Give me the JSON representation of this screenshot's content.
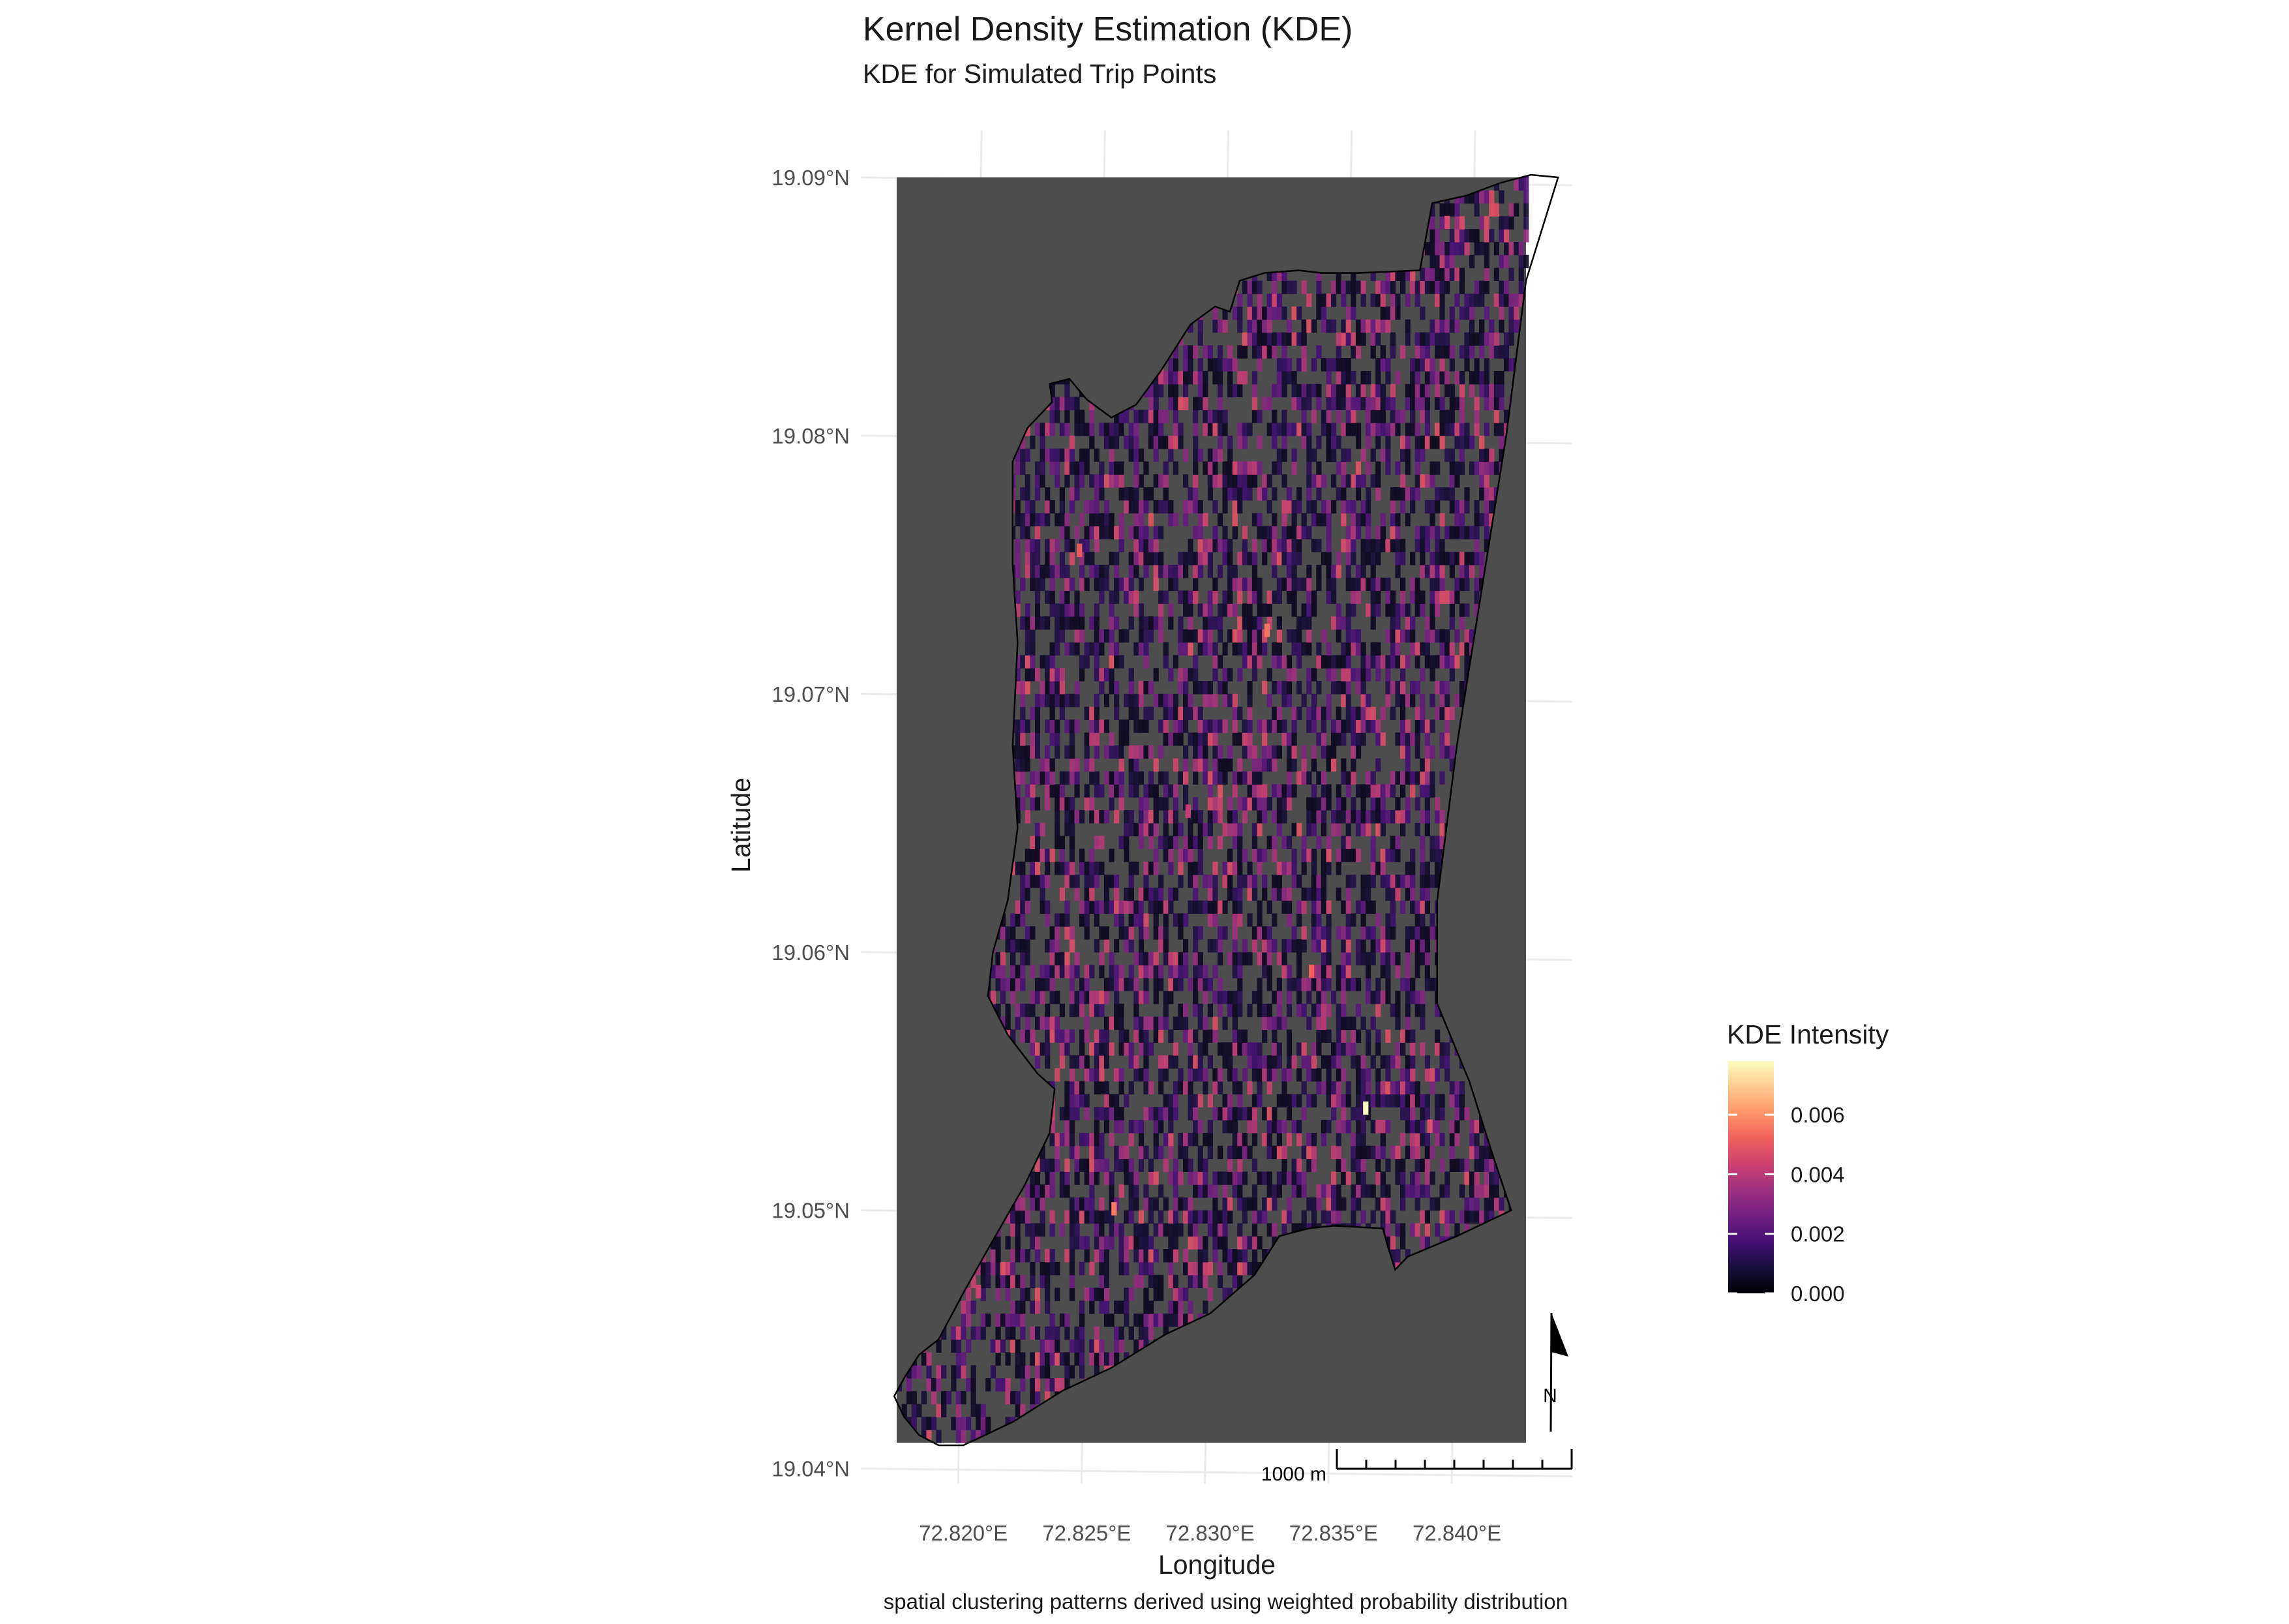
{
  "plot": {
    "title": "Kernel Density Estimation (KDE)",
    "subtitle": "KDE for Simulated Trip Points",
    "caption": "spatial clustering patterns derived using weighted probability distribution",
    "xlabel": "Longitude",
    "ylabel": "Latitude"
  },
  "chart_data": {
    "type": "heatmap",
    "title": "Kernel Density Estimation (KDE)",
    "subtitle": "KDE for Simulated Trip Points",
    "xlabel": "Longitude",
    "ylabel": "Latitude",
    "xlim": [
      72.8173,
      72.8428
    ],
    "ylim": [
      19.041,
      19.09
    ],
    "x_ticks": [
      72.82,
      72.825,
      72.83,
      72.835,
      72.84
    ],
    "x_tick_labels": [
      "72.820°E",
      "72.825°E",
      "72.830°E",
      "72.835°E",
      "72.840°E"
    ],
    "y_ticks": [
      19.04,
      19.05,
      19.06,
      19.07,
      19.08,
      19.09
    ],
    "y_tick_labels": [
      "19.04°N",
      "19.05°N",
      "19.06°N",
      "19.07°N",
      "19.08°N",
      "19.09°N"
    ],
    "grid": true,
    "background_fill": "#4d4d4d",
    "cell_size_deg": {
      "lon": 0.0002,
      "lat": 0.0005
    },
    "boundary_lonlat": [
      [
        72.8404,
        19.0893
      ],
      [
        72.8418,
        19.0898
      ],
      [
        72.843,
        19.0901
      ],
      [
        72.8441,
        19.09
      ],
      [
        72.8428,
        19.086
      ],
      [
        72.842,
        19.08
      ],
      [
        72.841,
        19.074
      ],
      [
        72.84,
        19.068
      ],
      [
        72.8392,
        19.062
      ],
      [
        72.8392,
        19.058
      ],
      [
        72.8405,
        19.055
      ],
      [
        72.8415,
        19.052
      ],
      [
        72.8422,
        19.05
      ],
      [
        72.84,
        19.049
      ],
      [
        72.838,
        19.0482
      ],
      [
        72.8375,
        19.0477
      ],
      [
        72.8372,
        19.0486
      ],
      [
        72.837,
        19.0493
      ],
      [
        72.835,
        19.0494
      ],
      [
        72.834,
        19.0493
      ],
      [
        72.8328,
        19.049
      ],
      [
        72.8318,
        19.0475
      ],
      [
        72.83,
        19.046
      ],
      [
        72.8282,
        19.0452
      ],
      [
        72.826,
        19.0439
      ],
      [
        72.824,
        19.043
      ],
      [
        72.822,
        19.0418
      ],
      [
        72.82,
        19.0409
      ],
      [
        72.819,
        19.0409
      ],
      [
        72.8182,
        19.0413
      ],
      [
        72.8176,
        19.042
      ],
      [
        72.8172,
        19.0428
      ],
      [
        72.8176,
        19.0435
      ],
      [
        72.8182,
        19.0444
      ],
      [
        72.819,
        19.045
      ],
      [
        72.82,
        19.0468
      ],
      [
        72.821,
        19.0485
      ],
      [
        72.8225,
        19.051
      ],
      [
        72.8235,
        19.053
      ],
      [
        72.8237,
        19.0547
      ],
      [
        72.823,
        19.0553
      ],
      [
        72.8218,
        19.0568
      ],
      [
        72.821,
        19.0583
      ],
      [
        72.8212,
        19.06
      ],
      [
        72.8218,
        19.062
      ],
      [
        72.8222,
        19.0648
      ],
      [
        72.822,
        19.068
      ],
      [
        72.8222,
        19.072
      ],
      [
        72.822,
        19.075
      ],
      [
        72.822,
        19.077
      ],
      [
        72.822,
        19.079
      ],
      [
        72.8226,
        19.0803
      ],
      [
        72.8236,
        19.0813
      ],
      [
        72.8235,
        19.082
      ],
      [
        72.8243,
        19.0822
      ],
      [
        72.825,
        19.0814
      ],
      [
        72.826,
        19.0807
      ],
      [
        72.827,
        19.0812
      ],
      [
        72.828,
        19.0825
      ],
      [
        72.8292,
        19.0843
      ],
      [
        72.8302,
        19.085
      ],
      [
        72.8308,
        19.0848
      ],
      [
        72.8312,
        19.086
      ],
      [
        72.8322,
        19.0863
      ],
      [
        72.8336,
        19.0864
      ],
      [
        72.8345,
        19.0863
      ],
      [
        72.836,
        19.0863
      ],
      [
        72.8385,
        19.0864
      ],
      [
        72.839,
        19.089
      ],
      [
        72.8404,
        19.0893
      ]
    ],
    "hotspot_cells": [
      {
        "lon": 72.8362,
        "lat": 19.0537,
        "value": 0.0078
      },
      {
        "lon": 72.8322,
        "lat": 19.0722,
        "value": 0.0055
      },
      {
        "lon": 72.826,
        "lat": 19.0498,
        "value": 0.0056
      },
      {
        "lon": 72.834,
        "lat": 19.059,
        "value": 0.0052
      },
      {
        "lon": 72.8305,
        "lat": 19.0855,
        "value": 0.0048
      },
      {
        "lon": 72.8246,
        "lat": 19.0753,
        "value": 0.005
      },
      {
        "lon": 72.8395,
        "lat": 19.088,
        "value": 0.0045
      },
      {
        "lon": 72.8205,
        "lat": 19.0466,
        "value": 0.0044
      },
      {
        "lon": 72.8388,
        "lat": 19.053,
        "value": 0.0047
      },
      {
        "lon": 72.829,
        "lat": 19.0652,
        "value": 0.0042
      }
    ],
    "background_intensity": {
      "min": 0.0,
      "typical": 0.0015,
      "max": 0.0078
    },
    "legend": {
      "title": "KDE Intensity",
      "position": "right",
      "scale": "magma",
      "range": [
        0.0,
        0.0078
      ],
      "ticks": [
        0.0,
        0.002,
        0.004,
        0.006
      ],
      "tick_labels": [
        "0.000",
        "0.002",
        "0.004",
        "0.006"
      ]
    }
  },
  "colors": {
    "panel_fill": "#4d4d4d",
    "boundary_stroke": "#000000",
    "grid": "#ebebeb",
    "magma": [
      "#000004",
      "#180f3d",
      "#440f76",
      "#721f81",
      "#9e2f7f",
      "#cd4071",
      "#f1605d",
      "#fd9668",
      "#feca8d",
      "#fcfdbf"
    ]
  },
  "scalebar": {
    "label": "1000 m"
  },
  "north_arrow": {
    "label": "N"
  }
}
